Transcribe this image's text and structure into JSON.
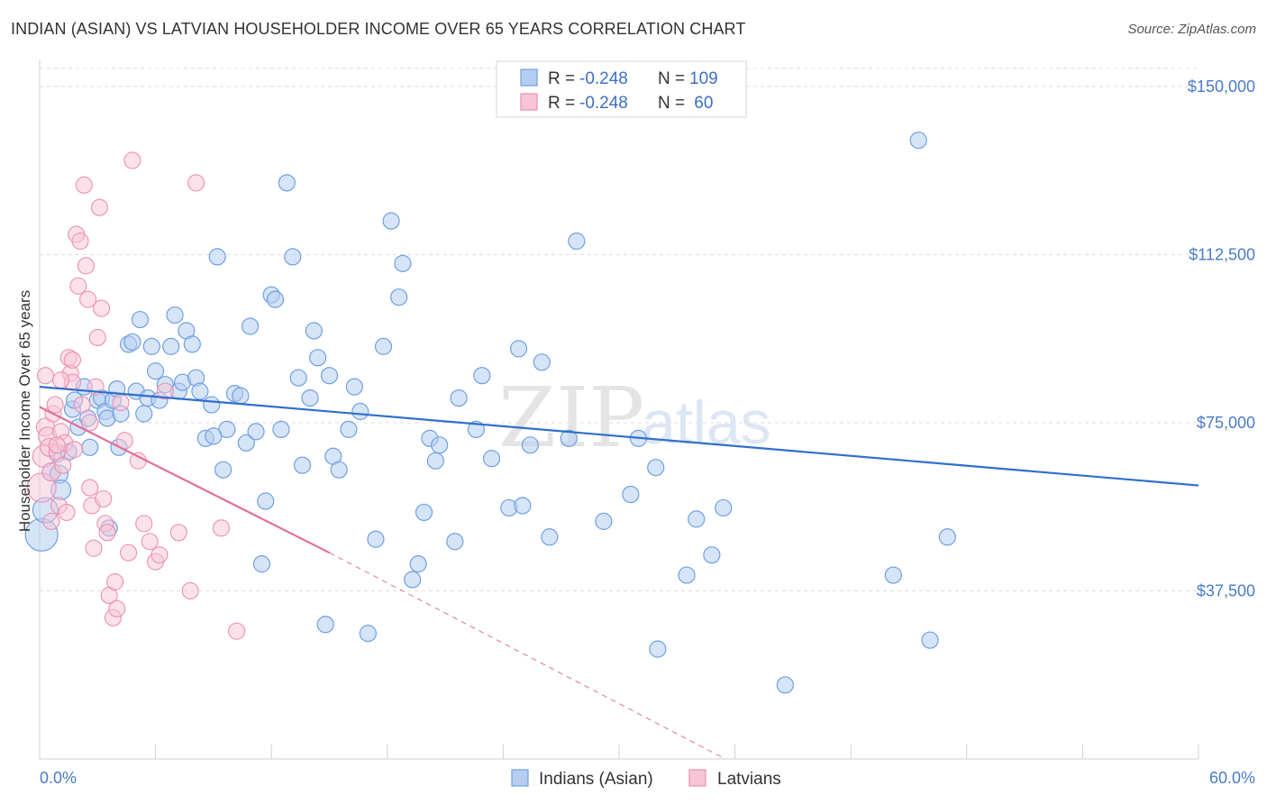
{
  "title": "INDIAN (ASIAN) VS LATVIAN HOUSEHOLDER INCOME OVER 65 YEARS CORRELATION CHART",
  "source": "Source: ZipAtlas.com",
  "watermark": {
    "part1": "ZIP",
    "part2": "atlas"
  },
  "colors": {
    "blue": "#6fa0e0",
    "blue_fill": "#b5cdf0",
    "blue_line": "#2f6fcc",
    "pink": "#ec8fb0",
    "pink_fill": "#f7c5d6",
    "pink_line": "#e0709a",
    "tick_label": "#4a7bc8",
    "grid": "#dddddd"
  },
  "legend": {
    "rows": [
      {
        "r_label": "R = ",
        "r_value": "-0.248",
        "n_label": "N = ",
        "n_value": "109"
      },
      {
        "r_label": "R = ",
        "r_value": "-0.248",
        "n_label": "N = ",
        "n_value": " 60"
      }
    ]
  },
  "chart_data": {
    "type": "scatter",
    "title": "INDIAN (ASIAN) VS LATVIAN HOUSEHOLDER INCOME OVER 65 YEARS CORRELATION CHART",
    "xlabel": "",
    "ylabel": "Householder Income Over 65 years",
    "xlim": [
      0,
      60
    ],
    "ylim": [
      0,
      154000
    ],
    "x_tick_labels": [
      "0.0%",
      "60.0%"
    ],
    "y_ticks": [
      37500,
      75000,
      112500,
      150000
    ],
    "y_tick_labels": [
      "$37,500",
      "$75,000",
      "$112,500",
      "$150,000"
    ],
    "grid": true,
    "legend_position": "top-center",
    "series": [
      {
        "name": "Indians (Asian)",
        "color": "#6fa0e0",
        "trend": {
          "x": [
            0,
            60
          ],
          "y": [
            83000,
            61000
          ]
        },
        "points": [
          [
            0.1,
            50000,
            18
          ],
          [
            0.3,
            55500,
            14
          ],
          [
            0.6,
            64000,
            10
          ],
          [
            0.9,
            68000,
            9
          ],
          [
            1.0,
            63500,
            10
          ],
          [
            1.1,
            60000,
            11
          ],
          [
            1.5,
            68500,
            9
          ],
          [
            1.7,
            78000,
            9
          ],
          [
            1.8,
            80000,
            9
          ],
          [
            2.0,
            74000,
            9
          ],
          [
            2.3,
            83000,
            9
          ],
          [
            2.5,
            76000,
            9
          ],
          [
            2.6,
            69500,
            9
          ],
          [
            3.0,
            80000,
            9
          ],
          [
            3.2,
            80500,
            9
          ],
          [
            3.4,
            77500,
            9
          ],
          [
            3.5,
            76000,
            9
          ],
          [
            3.6,
            51500,
            9
          ],
          [
            3.8,
            80000,
            9
          ],
          [
            4.0,
            82500,
            9
          ],
          [
            4.1,
            69500,
            9
          ],
          [
            4.2,
            77000,
            9
          ],
          [
            4.6,
            92500,
            9
          ],
          [
            4.8,
            93000,
            9
          ],
          [
            5.0,
            82000,
            9
          ],
          [
            5.2,
            98000,
            9
          ],
          [
            5.4,
            77000,
            9
          ],
          [
            5.6,
            80500,
            9
          ],
          [
            5.8,
            92000,
            9
          ],
          [
            6.0,
            86500,
            9
          ],
          [
            6.2,
            80000,
            9
          ],
          [
            6.5,
            83500,
            9
          ],
          [
            6.8,
            92000,
            9
          ],
          [
            7.0,
            99000,
            9
          ],
          [
            7.2,
            82000,
            9
          ],
          [
            7.4,
            84000,
            9
          ],
          [
            7.6,
            95500,
            9
          ],
          [
            7.9,
            92500,
            9
          ],
          [
            8.1,
            85000,
            9
          ],
          [
            8.3,
            82000,
            9
          ],
          [
            8.6,
            71500,
            9
          ],
          [
            8.9,
            79000,
            9
          ],
          [
            9.2,
            112000,
            9
          ],
          [
            9.5,
            64500,
            9
          ],
          [
            9.7,
            73500,
            9
          ],
          [
            10.1,
            81500,
            9
          ],
          [
            10.4,
            81000,
            9
          ],
          [
            10.7,
            70500,
            9
          ],
          [
            10.9,
            96500,
            9
          ],
          [
            11.2,
            73000,
            9
          ],
          [
            11.5,
            43500,
            9
          ],
          [
            11.7,
            57500,
            9
          ],
          [
            12.0,
            103500,
            9
          ],
          [
            12.2,
            102500,
            9
          ],
          [
            12.5,
            73500,
            9
          ],
          [
            12.8,
            128500,
            9
          ],
          [
            13.1,
            112000,
            9
          ],
          [
            13.4,
            85000,
            9
          ],
          [
            13.6,
            65500,
            9
          ],
          [
            14.0,
            80500,
            9
          ],
          [
            14.2,
            95500,
            9
          ],
          [
            14.4,
            89500,
            9
          ],
          [
            14.8,
            30000,
            9
          ],
          [
            15.0,
            85500,
            9
          ],
          [
            15.2,
            67500,
            9
          ],
          [
            15.5,
            64500,
            9
          ],
          [
            16.0,
            73500,
            9
          ],
          [
            16.3,
            83000,
            9
          ],
          [
            16.6,
            77500,
            9
          ],
          [
            17.0,
            28000,
            9
          ],
          [
            17.4,
            49000,
            9
          ],
          [
            17.8,
            92000,
            9
          ],
          [
            18.2,
            120000,
            9
          ],
          [
            18.6,
            103000,
            9
          ],
          [
            18.8,
            110500,
            9
          ],
          [
            19.3,
            40000,
            9
          ],
          [
            19.6,
            43500,
            9
          ],
          [
            19.9,
            55000,
            9
          ],
          [
            20.2,
            71500,
            9
          ],
          [
            20.5,
            66500,
            9
          ],
          [
            20.7,
            70000,
            9
          ],
          [
            21.5,
            48500,
            9
          ],
          [
            21.7,
            80500,
            9
          ],
          [
            22.6,
            73500,
            9
          ],
          [
            22.9,
            85500,
            9
          ],
          [
            23.4,
            67000,
            9
          ],
          [
            24.3,
            56000,
            9
          ],
          [
            24.8,
            91500,
            9
          ],
          [
            25.0,
            56500,
            9
          ],
          [
            25.4,
            70000,
            9
          ],
          [
            26.0,
            88500,
            9
          ],
          [
            26.4,
            49500,
            9
          ],
          [
            27.4,
            71500,
            9
          ],
          [
            27.8,
            115500,
            9
          ],
          [
            29.2,
            53000,
            9
          ],
          [
            30.6,
            59000,
            9
          ],
          [
            31.0,
            71500,
            9
          ],
          [
            31.9,
            65000,
            9
          ],
          [
            32.0,
            24500,
            9
          ],
          [
            33.5,
            41000,
            9
          ],
          [
            34.0,
            53500,
            9
          ],
          [
            34.8,
            45500,
            9
          ],
          [
            35.4,
            56000,
            9
          ],
          [
            38.6,
            16500,
            9
          ],
          [
            44.2,
            41000,
            9
          ],
          [
            45.5,
            138000,
            9
          ],
          [
            46.1,
            26500,
            9
          ],
          [
            47.0,
            49500,
            9
          ],
          [
            9.0,
            72000,
            9
          ]
        ]
      },
      {
        "name": "Latvians",
        "color": "#ec8fb0",
        "trend": {
          "x": [
            0,
            15
          ],
          "y": [
            78500,
            46000
          ]
        },
        "trend_dashed": {
          "x": [
            15,
            35.5
          ],
          "y": [
            46000,
            0
          ]
        },
        "points": [
          [
            0.1,
            60500,
            16
          ],
          [
            0.2,
            67500,
            12
          ],
          [
            0.3,
            74000,
            10
          ],
          [
            0.4,
            72000,
            10
          ],
          [
            0.5,
            69500,
            10
          ],
          [
            0.6,
            64000,
            10
          ],
          [
            0.7,
            77000,
            9
          ],
          [
            0.8,
            79000,
            9
          ],
          [
            0.9,
            68500,
            9
          ],
          [
            1.0,
            56500,
            9
          ],
          [
            1.1,
            73000,
            9
          ],
          [
            1.2,
            65500,
            9
          ],
          [
            1.3,
            70500,
            9
          ],
          [
            1.4,
            55000,
            9
          ],
          [
            1.5,
            89500,
            9
          ],
          [
            1.6,
            86000,
            9
          ],
          [
            1.7,
            84000,
            9
          ],
          [
            1.8,
            69000,
            9
          ],
          [
            1.9,
            117000,
            9
          ],
          [
            2.0,
            105500,
            9
          ],
          [
            2.1,
            115500,
            9
          ],
          [
            2.2,
            79000,
            9
          ],
          [
            2.3,
            128000,
            9
          ],
          [
            2.4,
            110000,
            9
          ],
          [
            2.5,
            102500,
            9
          ],
          [
            2.6,
            60500,
            9
          ],
          [
            2.7,
            56500,
            9
          ],
          [
            2.8,
            47000,
            9
          ],
          [
            2.9,
            83000,
            9
          ],
          [
            3.0,
            94000,
            9
          ],
          [
            3.1,
            123000,
            9
          ],
          [
            3.2,
            100500,
            9
          ],
          [
            3.3,
            58000,
            9
          ],
          [
            3.4,
            52500,
            9
          ],
          [
            3.5,
            50500,
            9
          ],
          [
            3.6,
            36500,
            9
          ],
          [
            3.8,
            31500,
            9
          ],
          [
            3.9,
            39500,
            9
          ],
          [
            4.0,
            33500,
            9
          ],
          [
            4.2,
            79500,
            9
          ],
          [
            4.4,
            71000,
            9
          ],
          [
            4.6,
            46000,
            9
          ],
          [
            4.8,
            133500,
            9
          ],
          [
            5.1,
            66500,
            9
          ],
          [
            5.4,
            52500,
            9
          ],
          [
            5.7,
            48500,
            9
          ],
          [
            6.0,
            44000,
            9
          ],
          [
            6.2,
            45500,
            9
          ],
          [
            6.5,
            82000,
            9
          ],
          [
            7.2,
            50500,
            9
          ],
          [
            7.8,
            37500,
            9
          ],
          [
            8.1,
            128500,
            9
          ],
          [
            9.4,
            51500,
            9
          ],
          [
            10.2,
            28500,
            9
          ],
          [
            0.3,
            85500,
            9
          ],
          [
            1.1,
            84500,
            9
          ],
          [
            0.6,
            53000,
            9
          ],
          [
            2.6,
            75000,
            9
          ],
          [
            1.7,
            89000,
            9
          ],
          [
            0.9,
            70000,
            9
          ]
        ]
      }
    ]
  }
}
